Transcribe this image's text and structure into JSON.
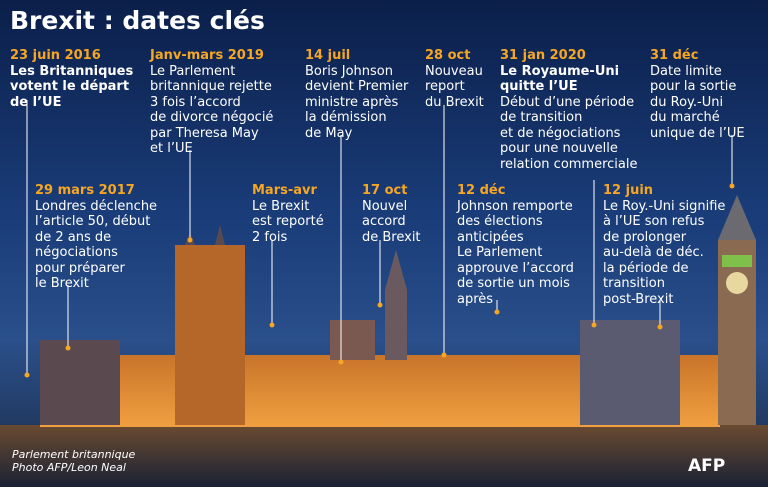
{
  "header": {
    "title": "Brexit : dates clés"
  },
  "events": [
    {
      "date": "23 juin 2016",
      "headline": [
        "Les Britanniques",
        "votent le départ",
        "de l’UE"
      ],
      "lines": []
    },
    {
      "date": "Janv-mars 2019",
      "headline": [],
      "lines": [
        "Le Parlement",
        "britannique rejette",
        "3 fois l’accord",
        "de divorce négocié",
        "par Theresa May",
        "et l’UE"
      ]
    },
    {
      "date": "14 juil",
      "headline": [],
      "lines": [
        "Boris Johnson",
        "devient Premier",
        "ministre après",
        "la démission",
        "de May"
      ]
    },
    {
      "date": "28 oct",
      "headline": [],
      "lines": [
        "Nouveau",
        "report",
        "du Brexit"
      ]
    },
    {
      "date": "31 jan 2020",
      "headline": [
        "Le Royaume-Uni",
        "quitte l’UE"
      ],
      "lines": [
        "Début d’une période",
        "de transition",
        "et de négociations",
        "pour une nouvelle",
        "relation commerciale"
      ]
    },
    {
      "date": "31 déc",
      "headline": [],
      "lines": [
        "Date limite",
        "pour la sortie",
        "du Roy.-Uni",
        "du marché",
        "unique de l’UE"
      ]
    },
    {
      "date": "29 mars 2017",
      "headline": [],
      "lines": [
        "Londres déclenche",
        "l’article 50, début",
        "de 2 ans de",
        "négociations",
        "pour préparer",
        "le Brexit"
      ]
    },
    {
      "date": "Mars-avr",
      "headline": [],
      "lines": [
        "Le Brexit",
        "est reporté",
        "2 fois"
      ]
    },
    {
      "date": "17 oct",
      "headline": [],
      "lines": [
        "Nouvel",
        "accord",
        "de Brexit"
      ]
    },
    {
      "date": "12 déc",
      "headline": [],
      "lines": [
        "Johnson remporte",
        "des élections",
        "anticipées",
        "Le Parlement",
        "approuve l’accord",
        "de sortie un mois",
        "après"
      ]
    },
    {
      "date": "12 juin",
      "headline": [],
      "lines": [
        "Le Roy.-Uni signifie",
        "à l’UE son refus",
        "de prolonger",
        "au-delà de déc.",
        "la période de",
        "transition",
        "post-Brexit"
      ]
    }
  ],
  "credits": [
    "Parlement britannique",
    "Photo AFP/Leon Neal"
  ],
  "logo": "AFP"
}
